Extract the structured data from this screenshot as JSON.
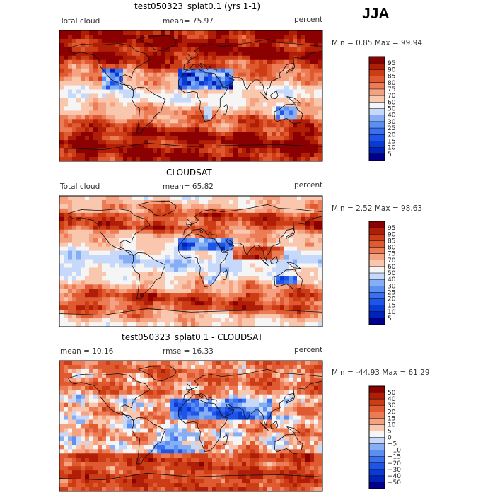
{
  "season": "JJA",
  "panels": [
    {
      "title": "test050323_splat0.1 (yrs 1-1)",
      "left_label": "Total cloud",
      "mid_label": "mean=  75.97",
      "units": "percent",
      "range_label": "Min =   0.85 Max =  99.94"
    },
    {
      "title": "CLOUDSAT",
      "left_label": "Total cloud",
      "mid_label": "mean=  65.82",
      "units": "percent",
      "range_label": "Min =   2.52 Max =  98.63"
    },
    {
      "title": "test050323_splat0.1 - CLOUDSAT",
      "left_label": "mean =  10.16",
      "mid_label": "rmse =  16.33",
      "units": "percent",
      "range_label": "Min = -44.93 Max =  61.29"
    }
  ],
  "chart_data": [
    {
      "type": "heatmap",
      "title": "test050323_splat0.1 (yrs 1-1)",
      "variable": "Total cloud",
      "units": "percent",
      "mean": 75.97,
      "min": 0.85,
      "max": 99.94,
      "colorbar_levels": [
        5,
        10,
        15,
        20,
        25,
        30,
        40,
        50,
        60,
        70,
        75,
        80,
        85,
        90,
        95
      ],
      "colorbar_colors": [
        "#00008b",
        "#0022b8",
        "#0a3ad4",
        "#1f55e6",
        "#3a70f0",
        "#5b8ff2",
        "#86aef5",
        "#c7d9fa",
        "#f5f5f5",
        "#f9c7ae",
        "#f4a281",
        "#ec7c55",
        "#df5a31",
        "#cc3d16",
        "#b01e08",
        "#8b0000"
      ]
    },
    {
      "type": "heatmap",
      "title": "CLOUDSAT",
      "variable": "Total cloud",
      "units": "percent",
      "mean": 65.82,
      "min": 2.52,
      "max": 98.63,
      "colorbar_levels": [
        5,
        10,
        15,
        20,
        25,
        30,
        40,
        50,
        60,
        70,
        75,
        80,
        85,
        90,
        95
      ],
      "colorbar_colors": [
        "#00008b",
        "#0022b8",
        "#0a3ad4",
        "#1f55e6",
        "#3a70f0",
        "#5b8ff2",
        "#86aef5",
        "#c7d9fa",
        "#f5f5f5",
        "#f9c7ae",
        "#f4a281",
        "#ec7c55",
        "#df5a31",
        "#cc3d16",
        "#b01e08",
        "#8b0000"
      ]
    },
    {
      "type": "heatmap",
      "title": "test050323_splat0.1 - CLOUDSAT",
      "units": "percent",
      "mean": 10.16,
      "rmse": 16.33,
      "min": -44.93,
      "max": 61.29,
      "colorbar_levels": [
        -50,
        -40,
        -30,
        -20,
        -15,
        -10,
        -5,
        0,
        5,
        10,
        15,
        20,
        30,
        40,
        50
      ],
      "colorbar_colors": [
        "#00008b",
        "#0022b8",
        "#0a3ad4",
        "#1f55e6",
        "#3a70f0",
        "#5b8ff2",
        "#86aef5",
        "#c7d9fa",
        "#f5f5f5",
        "#f9c7ae",
        "#f4a281",
        "#ec7c55",
        "#df5a31",
        "#cc3d16",
        "#b01e08",
        "#8b0000"
      ]
    }
  ]
}
